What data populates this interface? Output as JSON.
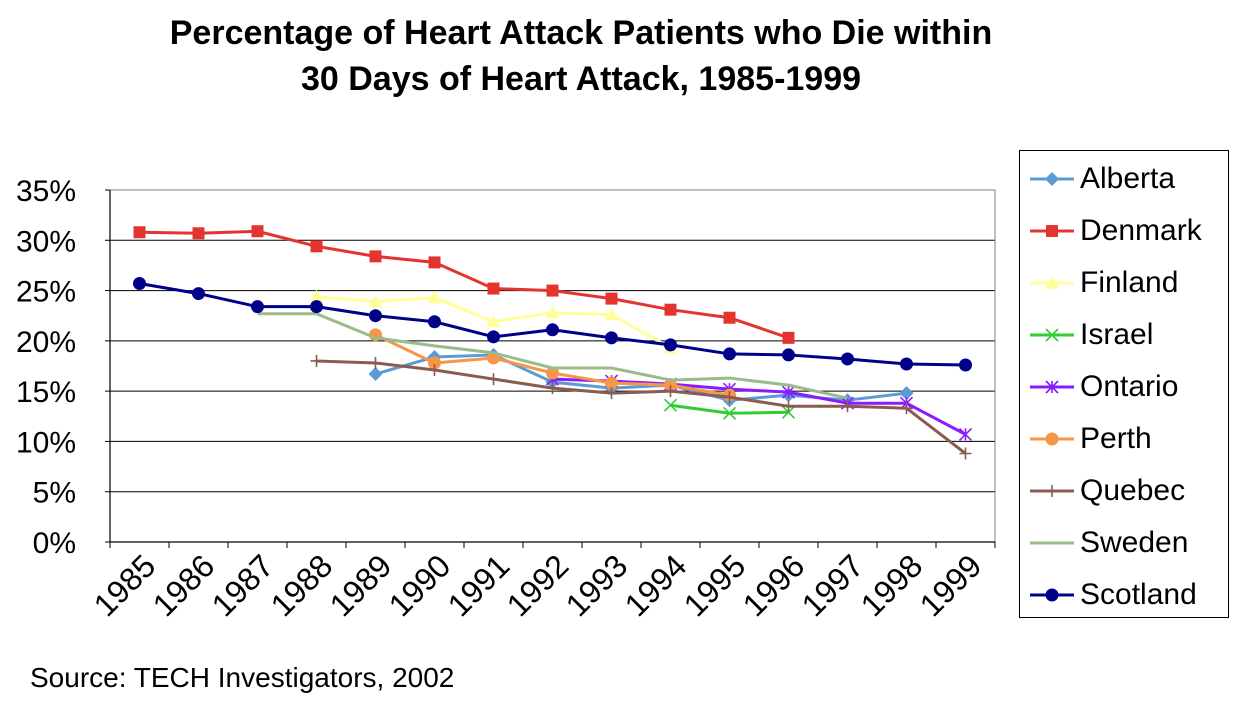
{
  "chart_data": {
    "type": "line",
    "title_lines": [
      "Percentage of Heart Attack Patients who Die within",
      "30 Days of Heart Attack, 1985-1999"
    ],
    "x": [
      "1985",
      "1986",
      "1987",
      "1988",
      "1989",
      "1990",
      "1991",
      "1992",
      "1993",
      "1994",
      "1995",
      "1996",
      "1997",
      "1998",
      "1999"
    ],
    "ylim": [
      0,
      35
    ],
    "yticks": [
      "0%",
      "5%",
      "10%",
      "15%",
      "20%",
      "25%",
      "30%",
      "35%"
    ],
    "grid": true,
    "legend_position": "right",
    "series": [
      {
        "name": "Alberta",
        "color": "#5b9bd5",
        "marker": "diamond",
        "values": [
          null,
          null,
          null,
          null,
          16.7,
          18.4,
          18.6,
          15.9,
          15.3,
          15.6,
          14.1,
          14.6,
          14.1,
          14.8,
          null
        ]
      },
      {
        "name": "Denmark",
        "color": "#e3342f",
        "marker": "square",
        "values": [
          30.8,
          30.7,
          30.9,
          29.4,
          28.4,
          27.8,
          25.2,
          25.0,
          24.2,
          23.1,
          22.3,
          20.3,
          null,
          null,
          null
        ]
      },
      {
        "name": "Finland",
        "color": "#ffff99",
        "marker": "triangle",
        "values": [
          null,
          null,
          null,
          24.4,
          23.9,
          24.3,
          21.9,
          22.8,
          22.6,
          19.3,
          null,
          null,
          null,
          null,
          null
        ]
      },
      {
        "name": "Israel",
        "color": "#33cc33",
        "marker": "x",
        "values": [
          null,
          null,
          null,
          null,
          null,
          null,
          null,
          null,
          null,
          13.6,
          12.8,
          12.9,
          null,
          null,
          null
        ]
      },
      {
        "name": "Ontario",
        "color": "#8c1aff",
        "marker": "star",
        "values": [
          null,
          null,
          null,
          null,
          null,
          null,
          null,
          16.2,
          16.0,
          15.7,
          15.2,
          14.9,
          13.8,
          13.8,
          10.7
        ]
      },
      {
        "name": "Perth",
        "color": "#f79646",
        "marker": "circle",
        "values": [
          null,
          null,
          null,
          null,
          20.6,
          17.8,
          18.3,
          16.8,
          15.8,
          15.6,
          14.6,
          null,
          null,
          null,
          null
        ]
      },
      {
        "name": "Quebec",
        "color": "#8b5a50",
        "marker": "plus",
        "values": [
          null,
          null,
          null,
          18.0,
          17.8,
          17.1,
          16.2,
          15.3,
          14.8,
          15.0,
          14.4,
          13.5,
          13.5,
          13.3,
          8.8
        ]
      },
      {
        "name": "Sweden",
        "color": "#9bbb8a",
        "marker": "none",
        "values": [
          null,
          null,
          22.7,
          22.7,
          20.3,
          19.5,
          18.8,
          17.3,
          17.3,
          16.1,
          16.3,
          15.6,
          14.3,
          null,
          null
        ]
      },
      {
        "name": "Scotland",
        "color": "#00008b",
        "marker": "circle",
        "values": [
          25.7,
          24.7,
          23.4,
          23.4,
          22.5,
          21.9,
          20.4,
          21.1,
          20.3,
          19.6,
          18.7,
          18.6,
          18.2,
          17.7,
          17.6
        ]
      }
    ]
  },
  "source": "Source: TECH Investigators, 2002"
}
